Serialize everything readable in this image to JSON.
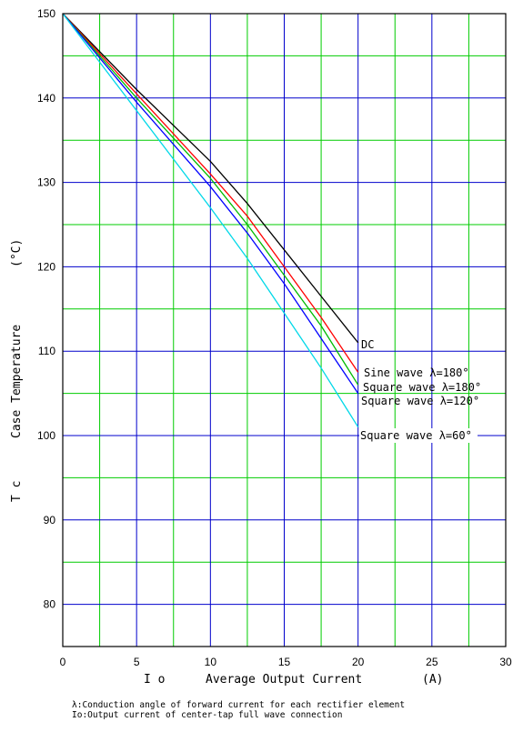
{
  "chart_data": {
    "type": "line",
    "xlabel_symbol": "I o",
    "xlabel": "Average Output Current",
    "xlabel_unit": "(A)",
    "ylabel_symbol": "T c",
    "ylabel": "Case Temperature",
    "ylabel_unit": "(°C)",
    "xlim": [
      0,
      30
    ],
    "ylim": [
      75,
      150
    ],
    "x_ticks": [
      0,
      5,
      10,
      15,
      20,
      25,
      30
    ],
    "y_ticks": [
      80,
      90,
      100,
      110,
      120,
      130,
      140,
      150
    ],
    "grid": true,
    "grid_colors": {
      "major": "#0000cc",
      "minor": "#00cc00"
    },
    "series": [
      {
        "name": "DC",
        "color": "#000000",
        "points": [
          [
            0,
            150
          ],
          [
            5,
            141
          ],
          [
            10,
            132.5
          ],
          [
            12.5,
            127.5
          ],
          [
            15,
            122
          ],
          [
            17.5,
            116.5
          ],
          [
            20,
            111
          ]
        ]
      },
      {
        "name": "Sine wave λ=180°",
        "color": "#ff0000",
        "points": [
          [
            0,
            150
          ],
          [
            5,
            140.5
          ],
          [
            10,
            131
          ],
          [
            12.5,
            126
          ],
          [
            15,
            120
          ],
          [
            17.5,
            114
          ],
          [
            20,
            107.5
          ]
        ]
      },
      {
        "name": "Square wave λ=180°",
        "color": "#00bb00",
        "points": [
          [
            0,
            150
          ],
          [
            5,
            140
          ],
          [
            10,
            130.5
          ],
          [
            12.5,
            125
          ],
          [
            15,
            119
          ],
          [
            17.5,
            113
          ],
          [
            20,
            106
          ]
        ]
      },
      {
        "name": "Square wave λ=120°",
        "color": "#0000ff",
        "points": [
          [
            0,
            150
          ],
          [
            5,
            139.5
          ],
          [
            10,
            129.5
          ],
          [
            12.5,
            124
          ],
          [
            15,
            118
          ],
          [
            17.5,
            111.5
          ],
          [
            20,
            105
          ]
        ]
      },
      {
        "name": "Square wave λ=60°",
        "color": "#00d8e8",
        "points": [
          [
            0,
            150
          ],
          [
            5,
            138.5
          ],
          [
            10,
            127
          ],
          [
            12.5,
            121
          ],
          [
            15,
            114.5
          ],
          [
            17.5,
            108
          ],
          [
            20,
            101
          ]
        ]
      }
    ]
  },
  "notes": [
    "λ:Conduction angle of forward current for each rectifier element",
    "Io:Output current of center-tap full wave connection"
  ]
}
